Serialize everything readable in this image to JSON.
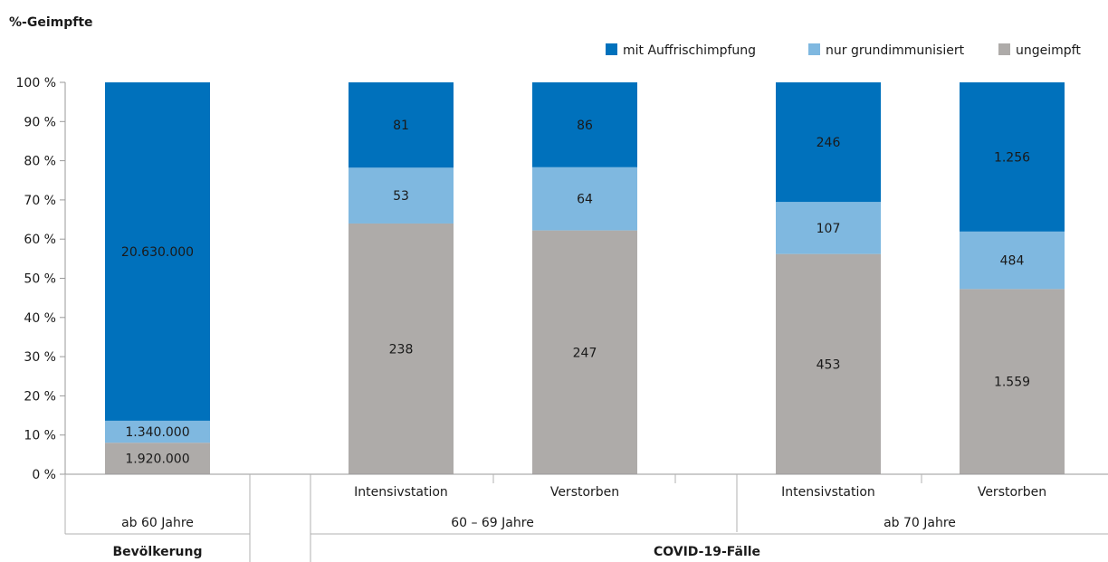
{
  "chart_data": {
    "type": "bar",
    "stacked": "percent",
    "ylabel": "%-Geimpfte",
    "yticks": [
      "0 %",
      "10 %",
      "20 %",
      "30 %",
      "40 %",
      "50 %",
      "60 %",
      "70 %",
      "80 %",
      "90 %",
      "100 %"
    ],
    "ylim": [
      0,
      100
    ],
    "legend_position": "top-right",
    "series": [
      {
        "name": "mit Auffrischimpfung",
        "color": "#0071BC"
      },
      {
        "name": "nur grundimmunisiert",
        "color": "#7FB8E0"
      },
      {
        "name": "ungeimpft",
        "color": "#AEABA9"
      }
    ],
    "bars": [
      {
        "category": "ab 60 Jahre",
        "values": {
          "ungeimpft": 1920000,
          "grundimmunisiert": 1340000,
          "auffrisch": 20630000
        },
        "labels": {
          "ungeimpft": "1.920.000",
          "grundimmunisiert": "1.340.000",
          "auffrisch": "20.630.000"
        }
      },
      {
        "category": "Intensivstation",
        "values": {
          "ungeimpft": 238,
          "grundimmunisiert": 53,
          "auffrisch": 81
        },
        "labels": {
          "ungeimpft": "238",
          "grundimmunisiert": "53",
          "auffrisch": "81"
        }
      },
      {
        "category": "Verstorben",
        "values": {
          "ungeimpft": 247,
          "grundimmunisiert": 64,
          "auffrisch": 86
        },
        "labels": {
          "ungeimpft": "247",
          "grundimmunisiert": "64",
          "auffrisch": "86"
        }
      },
      {
        "category": "Intensivstation",
        "values": {
          "ungeimpft": 453,
          "grundimmunisiert": 107,
          "auffrisch": 246
        },
        "labels": {
          "ungeimpft": "453",
          "grundimmunisiert": "107",
          "auffrisch": "246"
        }
      },
      {
        "category": "Verstorben",
        "values": {
          "ungeimpft": 1559,
          "grundimmunisiert": 484,
          "auffrisch": 1256
        },
        "labels": {
          "ungeimpft": "1.559",
          "grundimmunisiert": "484",
          "auffrisch": "1.256"
        }
      }
    ],
    "age_groups": [
      "ab 60 Jahre",
      "60 – 69 Jahre",
      "ab 70 Jahre"
    ],
    "groups": [
      "Bevölkerung",
      "COVID-19-Fälle"
    ]
  }
}
